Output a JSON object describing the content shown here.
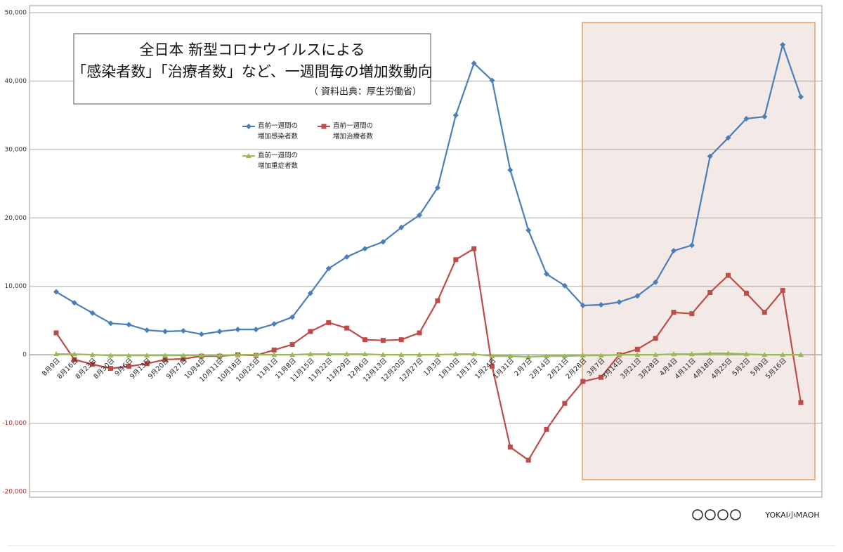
{
  "chart_data": {
    "type": "line",
    "title": [
      "全日本  新型コロナウイルスによる",
      "「感染者数」「治療者数」など、一週間毎の増加数動向"
    ],
    "subtitle": "（ 資料出典：厚生労働省）",
    "categories": [
      "8月9日",
      "8月16日",
      "8月23日",
      "8月30日",
      "9月6日",
      "9月13日",
      "9月20日",
      "9月27日",
      "10月4日",
      "10月11日",
      "10月18日",
      "10月25日",
      "11月1日",
      "11月8日",
      "11月15日",
      "11月22日",
      "11月29日",
      "12月6日",
      "12月13日",
      "12月20日",
      "12月27日",
      "1月3日",
      "1月10日",
      "1月17日",
      "1月24日",
      "1月31日",
      "2月7日",
      "2月14日",
      "2月21日",
      "2月28日",
      "3月7日",
      "3月14日",
      "3月21日",
      "3月28日",
      "4月4日",
      "4月11日",
      "4月18日",
      "4月25日",
      "5月2日",
      "5月9日",
      "5月16日",
      null
    ],
    "series": [
      {
        "name": "直前一週間の増加感染者数",
        "color": "#4a7ebb",
        "marker": "diamond",
        "values": [
          9200,
          7600,
          6100,
          4600,
          4400,
          3600,
          3400,
          3500,
          3000,
          3400,
          3700,
          3700,
          4500,
          5500,
          9000,
          12600,
          14300,
          15500,
          16500,
          18600,
          20400,
          24400,
          35000,
          42600,
          40100,
          27000,
          18200,
          11800,
          10100,
          7200,
          7300,
          7700,
          8600,
          10600,
          15200,
          16000,
          29000,
          31700,
          34500,
          34800,
          45300,
          37700
        ]
      },
      {
        "name": "直前一週間の増加治療者数",
        "color": "#be4b48",
        "marker": "square",
        "values": [
          3200,
          -700,
          -1400,
          -2000,
          -1700,
          -1300,
          -700,
          -600,
          -200,
          -200,
          0,
          -100,
          700,
          1500,
          3400,
          4700,
          3900,
          2200,
          2100,
          2200,
          3200,
          7900,
          13900,
          15500,
          -1700,
          -13500,
          -15400,
          -10900,
          -7100,
          -3900,
          -3300,
          0,
          800,
          2400,
          6200,
          6000,
          9100,
          11600,
          9000,
          6200,
          9400,
          -7000
        ]
      },
      {
        "name": "直前一週間の増加重症者数",
        "color": "#98b954",
        "marker": "triangle",
        "values": [
          100,
          100,
          0,
          -100,
          -100,
          -100,
          -100,
          -100,
          -100,
          -100,
          0,
          0,
          0,
          0,
          100,
          100,
          100,
          100,
          0,
          0,
          0,
          0,
          100,
          100,
          -200,
          -200,
          -300,
          -200,
          -200,
          -100,
          -100,
          0,
          0,
          0,
          100,
          100,
          200,
          200,
          100,
          0,
          0,
          0
        ]
      }
    ],
    "ylim": [
      -20000,
      50000
    ],
    "yticks": [
      {
        "value": -20000,
        "label": "-20,000"
      },
      {
        "value": -10000,
        "label": "-10,000"
      },
      0,
      {
        "value": 10000,
        "label": "10,000"
      },
      {
        "value": 20000,
        "label": "20,000"
      },
      {
        "value": 30000,
        "label": "30,000"
      },
      {
        "value": 40000,
        "label": "40,000"
      },
      {
        "value": 50000,
        "label": "50,000"
      }
    ],
    "grid": true,
    "footer": "YOKAI小MAOH"
  }
}
